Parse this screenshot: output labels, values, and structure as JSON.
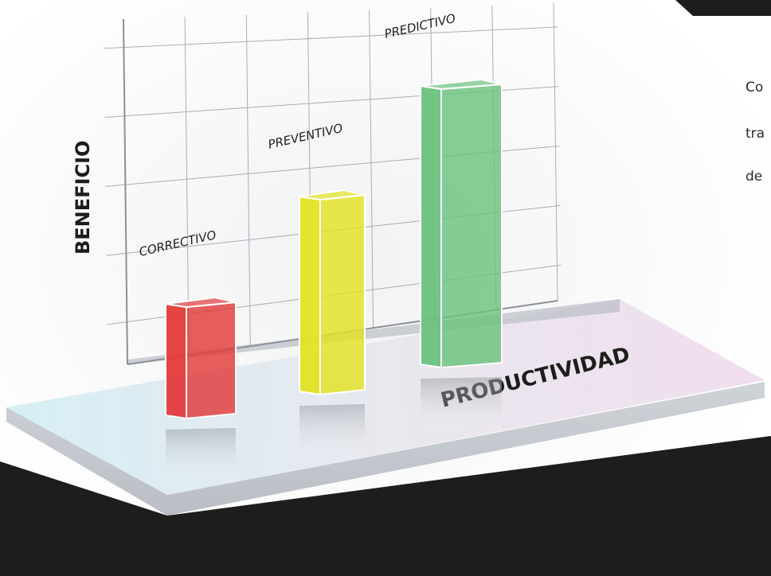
{
  "chart_data": {
    "type": "bar",
    "title": "",
    "xlabel": "PRODUCTIVIDAD",
    "ylabel": "BENEFICIO",
    "categories": [
      "CORRECTIVO",
      "PREVENTIVO",
      "PREDICTIVO"
    ],
    "values": [
      2,
      3.5,
      5
    ],
    "ylim": [
      0,
      6
    ],
    "grid": true,
    "legend": "none",
    "colors": [
      "#e23b3b",
      "#e3e324",
      "#6cc27e"
    ]
  },
  "side_text": {
    "line1": "Co",
    "line2": "tra",
    "line3": "de"
  },
  "colors": {
    "dark_band": "#1d1d1b",
    "platform": "#e4e9f0"
  }
}
